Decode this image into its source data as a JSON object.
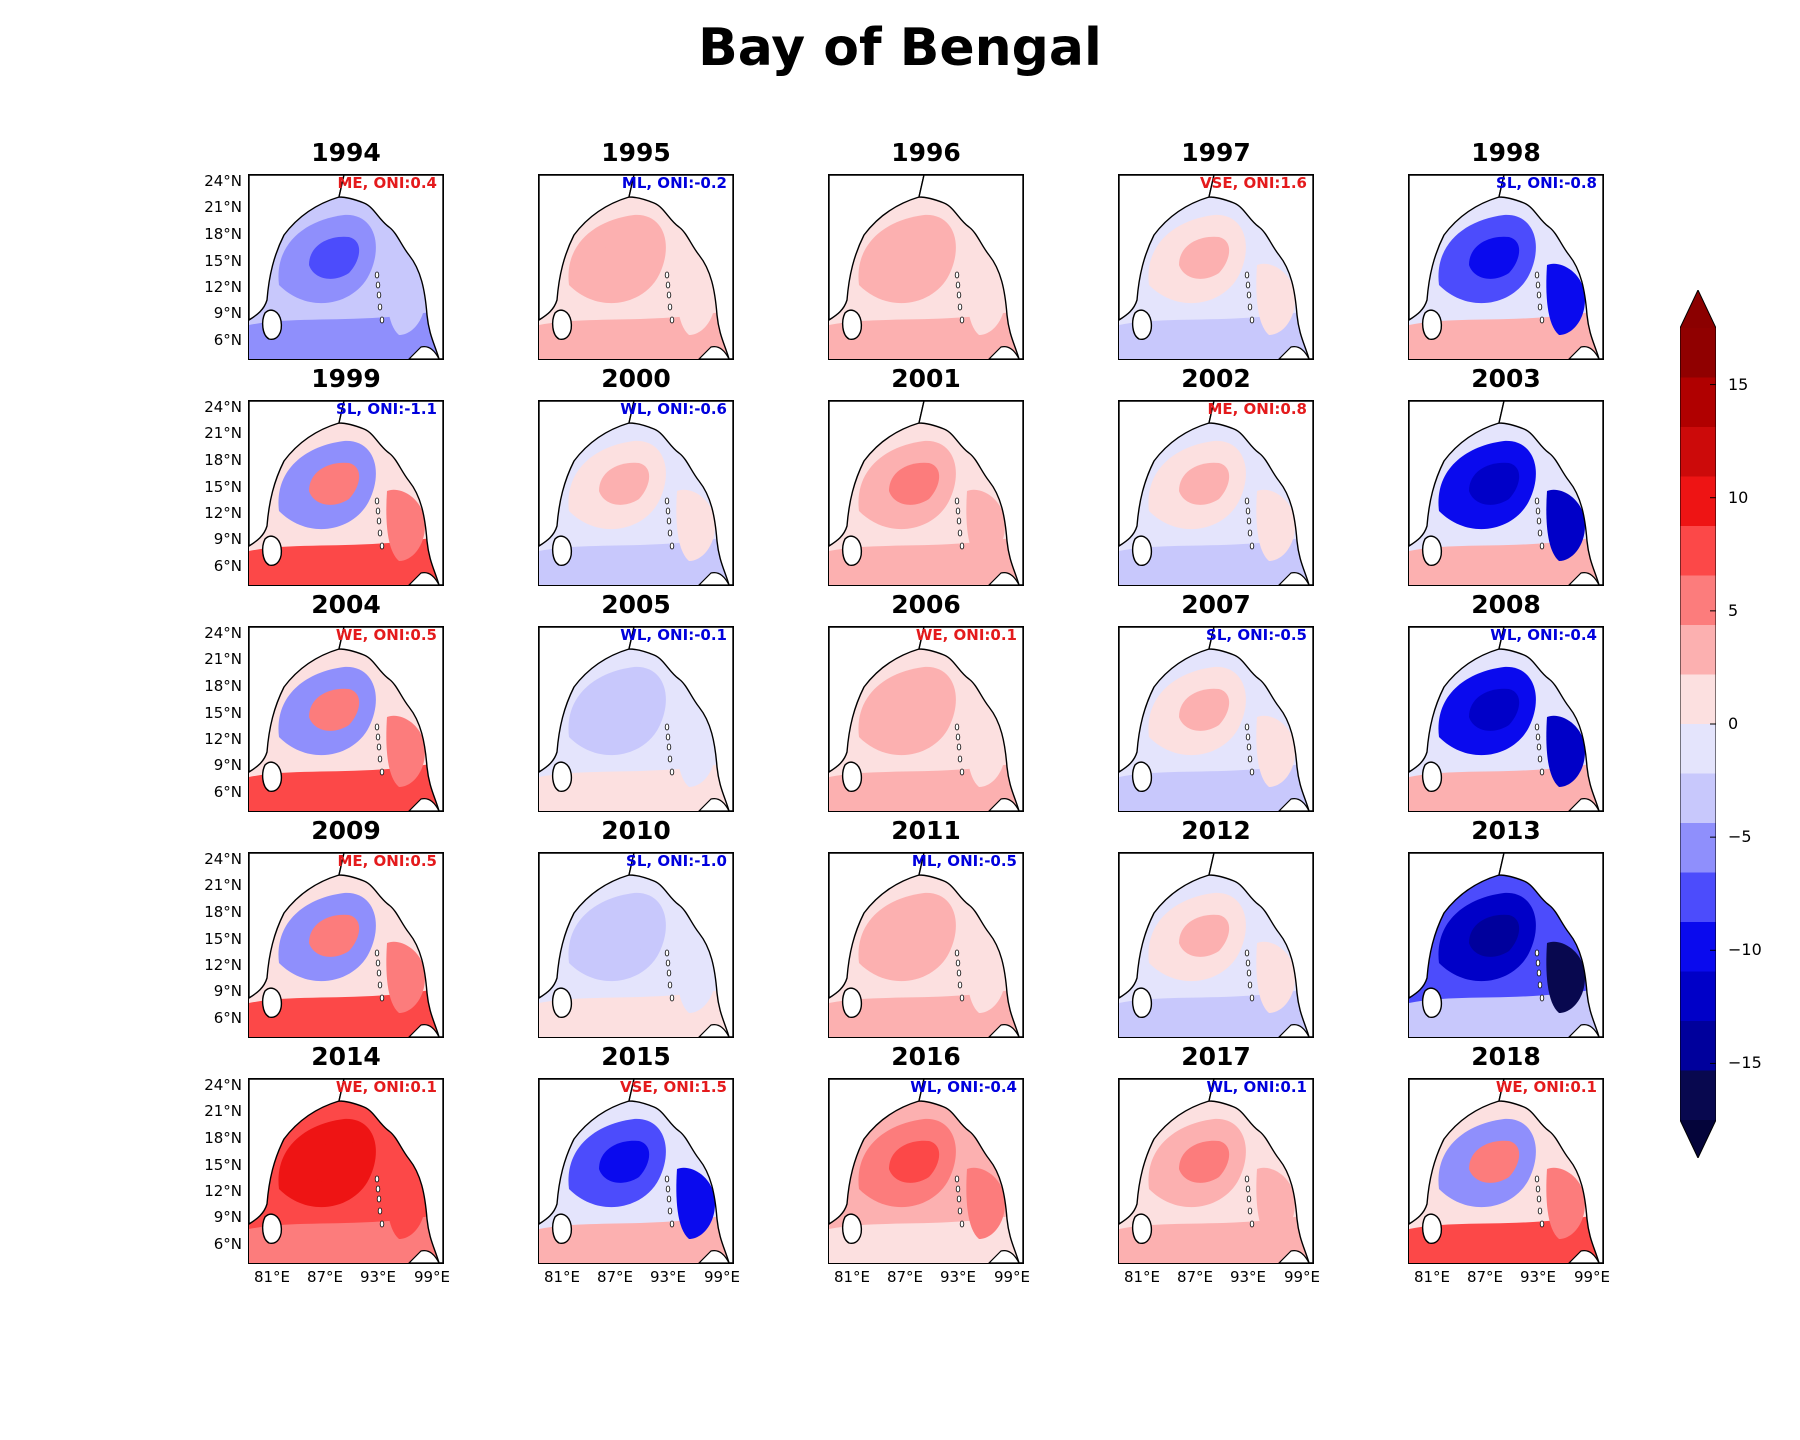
{
  "title": "Bay of Bengal",
  "map": {
    "lat_ticks": [
      "24°N",
      "21°N",
      "18°N",
      "15°N",
      "12°N",
      "9°N",
      "6°N"
    ],
    "lon_ticks": [
      "81°E",
      "87°E",
      "93°E",
      "99°E"
    ]
  },
  "colorbar": {
    "tick_labels": [
      "15",
      "10",
      "5",
      "0",
      "−5",
      "−10",
      "−15"
    ],
    "tick_values": [
      15,
      10,
      5,
      0,
      -5,
      -10,
      -15
    ],
    "levels": [
      -17.5,
      17.5
    ],
    "extend": "both",
    "colors": [
      "#08084f",
      "#00009c",
      "#0000c8",
      "#0a0aee",
      "#4c4cfc",
      "#8f8ffc",
      "#c8c8fc",
      "#e4e4fc",
      "#fce0e0",
      "#fcb0b0",
      "#fc7c7c",
      "#fc4848",
      "#ee1414",
      "#cc0a0a",
      "#b00000",
      "#900000"
    ],
    "cap_top": "#8b0000",
    "cap_bottom": "#04043a"
  },
  "colors": {
    "annotation_red": "#e41a1c",
    "annotation_blue": "#0000dd"
  },
  "panels": [
    {
      "year": "1994",
      "label": "ME, ONI:0.4",
      "label_color": "red",
      "pattern": "cool_moderate"
    },
    {
      "year": "1995",
      "label": "ML, ONI:-0.2",
      "label_color": "blue",
      "pattern": "warm_light"
    },
    {
      "year": "1996",
      "label": "",
      "label_color": "red",
      "pattern": "warm_light"
    },
    {
      "year": "1997",
      "label": "VSE, ONI:1.6",
      "label_color": "red",
      "pattern": "mixed_light"
    },
    {
      "year": "1998",
      "label": "SL, ONI:-0.8",
      "label_color": "blue",
      "pattern": "cool_east"
    },
    {
      "year": "1999",
      "label": "SL, ONI:-1.1",
      "label_color": "blue",
      "pattern": "cool_west_warm_east"
    },
    {
      "year": "2000",
      "label": "WL, ONI:-0.6",
      "label_color": "blue",
      "pattern": "mixed_light"
    },
    {
      "year": "2001",
      "label": "",
      "label_color": "red",
      "pattern": "warm_moderate"
    },
    {
      "year": "2002",
      "label": "ME, ONI:0.8",
      "label_color": "red",
      "pattern": "mixed_light"
    },
    {
      "year": "2003",
      "label": "",
      "label_color": "blue",
      "pattern": "cool_strong"
    },
    {
      "year": "2004",
      "label": "WE, ONI:0.5",
      "label_color": "red",
      "pattern": "cool_west_warm_east"
    },
    {
      "year": "2005",
      "label": "WL, ONI:-0.1",
      "label_color": "blue",
      "pattern": "cool_light"
    },
    {
      "year": "2006",
      "label": "WE, ONI:0.1",
      "label_color": "red",
      "pattern": "warm_light"
    },
    {
      "year": "2007",
      "label": "SL, ONI:-0.5",
      "label_color": "blue",
      "pattern": "mixed_light"
    },
    {
      "year": "2008",
      "label": "WL, ONI:-0.4",
      "label_color": "blue",
      "pattern": "cool_strong"
    },
    {
      "year": "2009",
      "label": "ME, ONI:0.5",
      "label_color": "red",
      "pattern": "cool_west_warm_east"
    },
    {
      "year": "2010",
      "label": "SL, ONI:-1.0",
      "label_color": "blue",
      "pattern": "cool_light"
    },
    {
      "year": "2011",
      "label": "ML, ONI:-0.5",
      "label_color": "blue",
      "pattern": "warm_light"
    },
    {
      "year": "2012",
      "label": "",
      "label_color": "red",
      "pattern": "mixed_light"
    },
    {
      "year": "2013",
      "label": "",
      "label_color": "blue",
      "pattern": "cool_extreme"
    },
    {
      "year": "2014",
      "label": "WE, ONI:0.1",
      "label_color": "red",
      "pattern": "warm_strong"
    },
    {
      "year": "2015",
      "label": "VSE, ONI:1.5",
      "label_color": "red",
      "pattern": "cool_east"
    },
    {
      "year": "2016",
      "label": "WL, ONI:-0.4",
      "label_color": "blue",
      "pattern": "warm_strong_light"
    },
    {
      "year": "2017",
      "label": "WL, ONI:0.1",
      "label_color": "blue",
      "pattern": "warm_moderate"
    },
    {
      "year": "2018",
      "label": "WE, ONI:0.1",
      "label_color": "red",
      "pattern": "cool_west_warm_east"
    }
  ]
}
